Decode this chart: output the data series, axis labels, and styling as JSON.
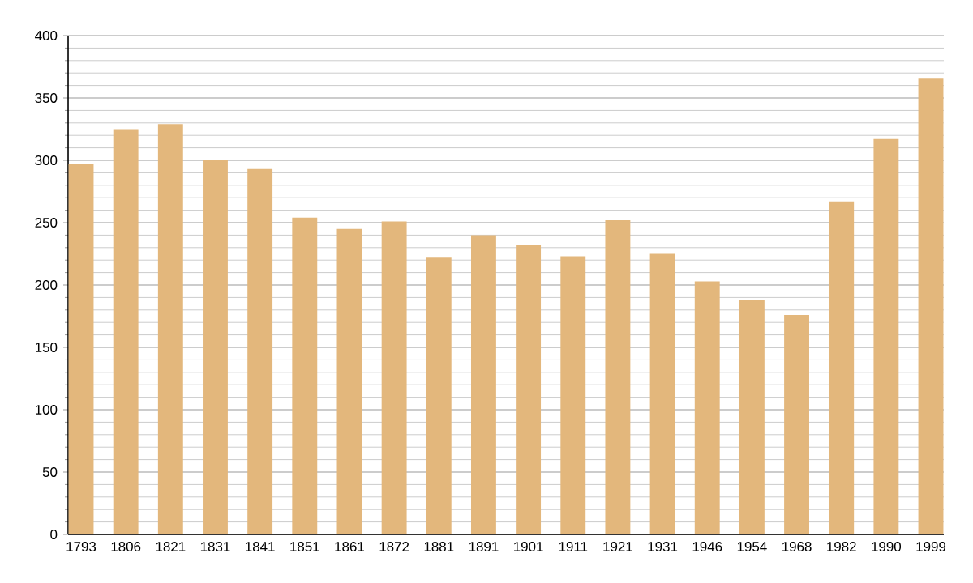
{
  "chart_data": {
    "type": "bar",
    "categories": [
      "1793",
      "1806",
      "1821",
      "1831",
      "1841",
      "1851",
      "1861",
      "1872",
      "1881",
      "1891",
      "1901",
      "1911",
      "1921",
      "1931",
      "1946",
      "1954",
      "1968",
      "1982",
      "1990",
      "1999"
    ],
    "values": [
      297,
      325,
      329,
      300,
      293,
      254,
      245,
      251,
      222,
      240,
      232,
      223,
      252,
      225,
      203,
      188,
      176,
      267,
      317,
      366
    ],
    "color": "#e3b77c",
    "ylim": [
      0,
      400
    ],
    "yticks": [
      0,
      50,
      100,
      150,
      200,
      250,
      300,
      350,
      400
    ],
    "grid": "y"
  }
}
